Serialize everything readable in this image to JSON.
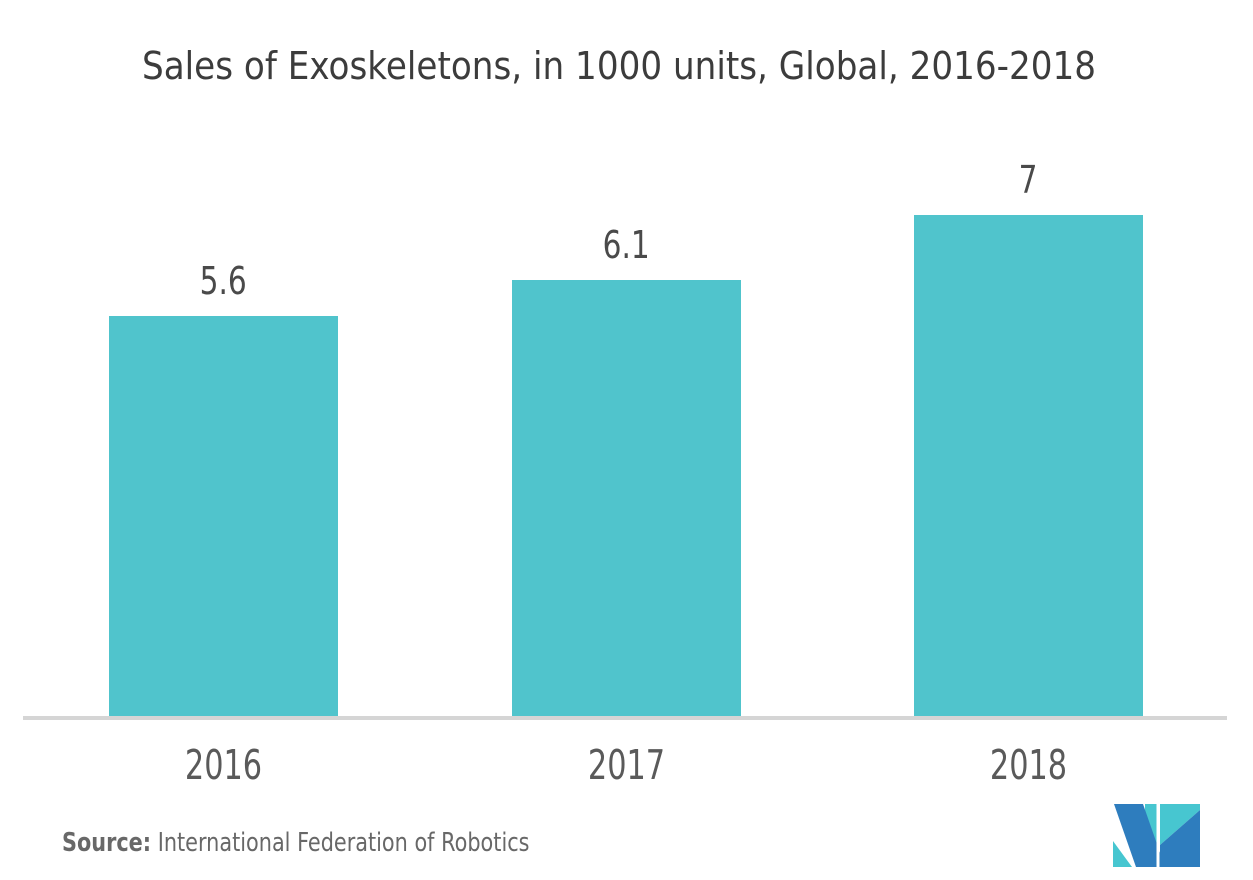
{
  "chart_data": {
    "type": "bar",
    "title": "Sales of Exoskeletons, in 1000 units, Global, 2016-2018",
    "categories": [
      "2016",
      "2017",
      "2018"
    ],
    "values": [
      5.6,
      6.1,
      7
    ],
    "value_labels": [
      "5.6",
      "6.1",
      "7"
    ],
    "xlabel": "",
    "ylabel": "",
    "ylim": [
      0,
      7
    ],
    "grid": false,
    "legend": "none",
    "bar_color": "#50C4CC",
    "axis_line_color": "#D5D5D5"
  },
  "source": {
    "label": "Source:",
    "text": "International Federation of Robotics"
  },
  "logo": {
    "name": "mordor-intelligence-logo",
    "colors": {
      "blue": "#2E7DBE",
      "teal": "#47C6D0",
      "gap": "#FFFFFF"
    }
  },
  "text_colors": {
    "title": "#3C3C3C",
    "value_label": "#4A4A4A",
    "category_label": "#5A5A5A",
    "source": "#686868"
  }
}
